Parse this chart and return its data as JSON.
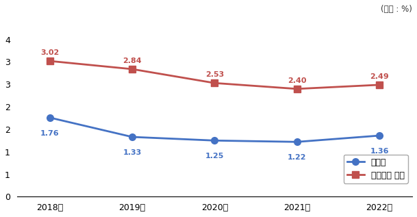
{
  "years": [
    "2018년",
    "2019년",
    "2020년",
    "2021년",
    "2022년"
  ],
  "busan": [
    1.76,
    1.33,
    1.25,
    1.22,
    1.36
  ],
  "similar": [
    3.02,
    2.84,
    2.53,
    2.4,
    2.49
  ],
  "busan_color": "#4472C4",
  "similar_color": "#C0504D",
  "busan_label": "부산시",
  "similar_label": "유사단체 평균",
  "unit_label": "(단위 : %)",
  "ylim": [
    0,
    4
  ],
  "yticks": [
    0,
    0.5,
    1.0,
    1.5,
    2.0,
    2.5,
    3.0,
    3.5,
    4.0
  ],
  "ytick_labels": [
    "0",
    "1",
    "1",
    "2",
    "2",
    "3",
    "3",
    "4",
    ""
  ],
  "bg_color": "#FFFFFF"
}
